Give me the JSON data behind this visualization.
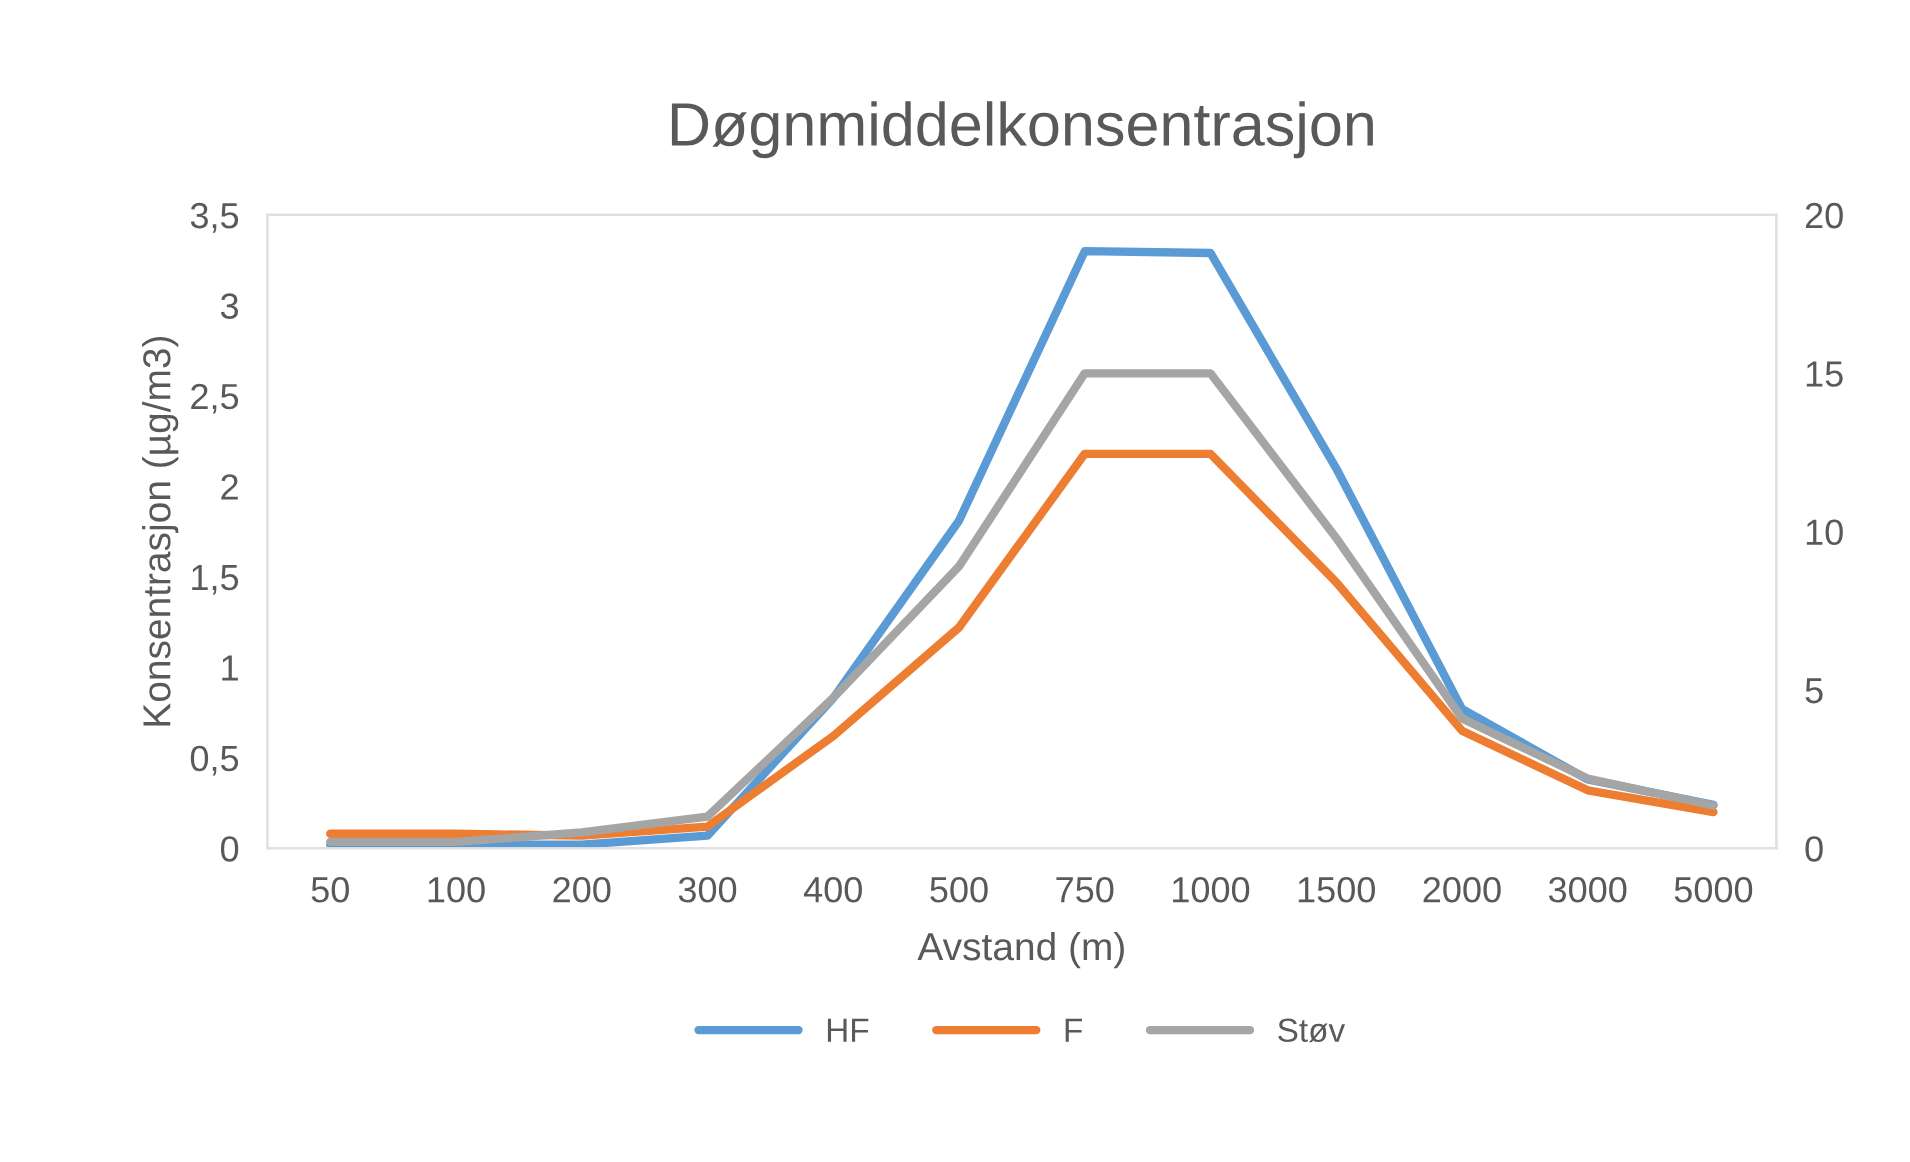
{
  "chart_data": {
    "type": "line",
    "title": "Døgnmiddelkonsentrasjon",
    "xlabel": "Avstand (m)",
    "ylabel": "Konsentrasjon (µg/m3)",
    "categories": [
      "50",
      "100",
      "200",
      "300",
      "400",
      "500",
      "750",
      "1000",
      "1500",
      "2000",
      "3000",
      "5000"
    ],
    "series": [
      {
        "name": "HF",
        "color": "#5b9bd5",
        "values": [
          0.02,
          0.02,
          0.02,
          0.07,
          0.83,
          1.81,
          3.3,
          3.29,
          2.1,
          0.77,
          0.38,
          0.24
        ]
      },
      {
        "name": "F",
        "color": "#ed7d31",
        "values": [
          0.08,
          0.08,
          0.07,
          0.12,
          0.62,
          1.22,
          2.18,
          2.18,
          1.47,
          0.65,
          0.32,
          0.2
        ]
      },
      {
        "name": "Støv",
        "color": "#a5a5a5",
        "axis": "y2",
        "values": [
          0.2,
          0.2,
          0.5,
          1.0,
          4.75,
          8.9,
          15.0,
          15.0,
          9.8,
          4.1,
          2.2,
          1.35
        ]
      }
    ],
    "ylim": [
      0,
      3.5
    ],
    "yticks": [
      0,
      {
        "value": 0.5,
        "label": "0,5"
      },
      1,
      {
        "value": 1.5,
        "label": "1,5"
      },
      2,
      {
        "value": 2.5,
        "label": "2,5"
      },
      3,
      {
        "value": 3.5,
        "label": "3,5"
      }
    ],
    "y2lim": [
      0,
      20
    ],
    "y2ticks": [
      0,
      5,
      10,
      15,
      20
    ],
    "grid": false,
    "legend": "bottom",
    "marker": "none",
    "line_style": "solid"
  }
}
